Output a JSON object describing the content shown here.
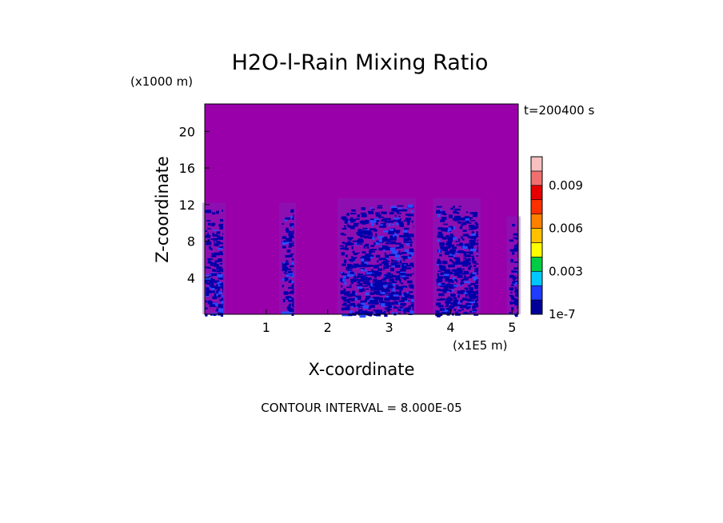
{
  "chart_data": {
    "type": "heatmap",
    "title": "H2O-l-Rain Mixing Ratio",
    "xlabel": "X-coordinate",
    "ylabel": "Z-coordinate",
    "x_unit": "(x1E5 m)",
    "y_unit": "(x1000 m)",
    "time_label": "t=200400 s",
    "footer": "CONTOUR INTERVAL = 8.000E-05",
    "xlim": [
      0,
      5.1
    ],
    "ylim": [
      0,
      23
    ],
    "x_ticks": [
      "1",
      "2",
      "3",
      "4",
      "5"
    ],
    "y_ticks": [
      "4",
      "8",
      "12",
      "16",
      "20"
    ],
    "colorbar": {
      "tick_labels": [
        "1e-7",
        "0.003",
        "0.006",
        "0.009"
      ],
      "colors": [
        "#000099",
        "#1f3cff",
        "#00c8ff",
        "#00cc44",
        "#ffff00",
        "#ffc000",
        "#ff8000",
        "#ff3000",
        "#e60000",
        "#f07070",
        "#f8c0c0"
      ]
    },
    "background_color": "#9900aa",
    "rain_color": "#0000aa",
    "bands": [
      {
        "x_start": 0.0,
        "x_end": 0.3,
        "z_top": 11.5
      },
      {
        "x_start": 1.25,
        "x_end": 1.45,
        "z_top": 11.5
      },
      {
        "x_start": 2.2,
        "x_end": 3.4,
        "z_top": 12.0
      },
      {
        "x_start": 3.75,
        "x_end": 4.45,
        "z_top": 12.0
      },
      {
        "x_start": 4.95,
        "x_end": 5.1,
        "z_top": 10.0
      }
    ]
  }
}
